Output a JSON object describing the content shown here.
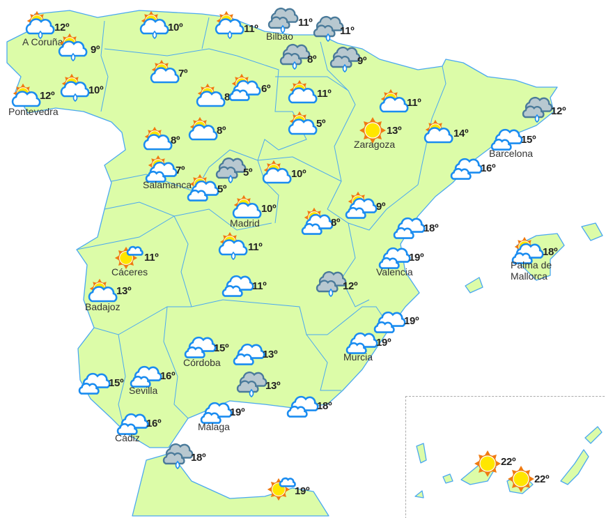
{
  "map": {
    "colors": {
      "land": "#dcfca8",
      "border": "#4aa8f0",
      "sun": "#ffe600",
      "sun_rays": "#f07a10",
      "cloud": "#ffffff",
      "cloud_outline": "#1a8cf0",
      "rain_cloud": "#b8c8d0",
      "rain_cloud_outline": "#4a7a9a"
    },
    "degree_symbol": "º"
  },
  "forecasts": [
    {
      "icon": "sun-cloud-rain",
      "temp": "12º",
      "city": "A Coruña"
    },
    {
      "icon": "sun-cloud-rain",
      "temp": "9º"
    },
    {
      "icon": "sun-cloud",
      "temp": "12º",
      "city": "Pontevedra"
    },
    {
      "icon": "sun-cloud-rain",
      "temp": "10º"
    },
    {
      "icon": "sun-cloud-rain",
      "temp": "10º"
    },
    {
      "icon": "sun-cloud-rain",
      "temp": "11º"
    },
    {
      "icon": "rain-cloud",
      "temp": "11º",
      "city": "Bilbao"
    },
    {
      "icon": "rain-cloud",
      "temp": "11º"
    },
    {
      "icon": "rain-cloud",
      "temp": "8º"
    },
    {
      "icon": "rain-cloud",
      "temp": "9º"
    },
    {
      "icon": "sun-cloud",
      "temp": "7º"
    },
    {
      "icon": "sun-cloud",
      "temp": "8º"
    },
    {
      "icon": "sun-clouds",
      "temp": "6º"
    },
    {
      "icon": "sun-cloud",
      "temp": "11º"
    },
    {
      "icon": "sun-cloud",
      "temp": "5º"
    },
    {
      "icon": "sun-cloud",
      "temp": "11º"
    },
    {
      "icon": "sun",
      "temp": "13º",
      "city": "Zaragoza"
    },
    {
      "icon": "sun-cloud",
      "temp": "14º"
    },
    {
      "icon": "rain-cloud",
      "temp": "12º"
    },
    {
      "icon": "clouds",
      "temp": "15º",
      "city": "Barcelona"
    },
    {
      "icon": "clouds",
      "temp": "16º"
    },
    {
      "icon": "sun-cloud",
      "temp": "8º"
    },
    {
      "icon": "sun-cloud",
      "temp": "8º"
    },
    {
      "icon": "sun-clouds",
      "temp": "7º",
      "city": "Salamanca"
    },
    {
      "icon": "sun-clouds",
      "temp": "5º"
    },
    {
      "icon": "rain-cloud",
      "temp": "5º"
    },
    {
      "icon": "sun-cloud",
      "temp": "10º"
    },
    {
      "icon": "sun-cloud",
      "temp": "10º",
      "city": "Madrid"
    },
    {
      "icon": "sun-clouds",
      "temp": "8º"
    },
    {
      "icon": "sun-clouds",
      "temp": "9º"
    },
    {
      "icon": "clouds",
      "temp": "18º"
    },
    {
      "icon": "sun-small-cloud",
      "temp": "11º",
      "city": "Cáceres"
    },
    {
      "icon": "sun-cloud",
      "temp": "13º",
      "city": "Badajoz"
    },
    {
      "icon": "sun-cloud-rain",
      "temp": "11º"
    },
    {
      "icon": "clouds",
      "temp": "11º"
    },
    {
      "icon": "rain-cloud",
      "temp": "12º"
    },
    {
      "icon": "clouds",
      "temp": "19º",
      "city": "Valencia"
    },
    {
      "icon": "sun-clouds",
      "temp": "18º",
      "city": "Palma de\nMallorca"
    },
    {
      "icon": "clouds",
      "temp": "19º"
    },
    {
      "icon": "clouds",
      "temp": "19º",
      "city": "Murcia"
    },
    {
      "icon": "clouds",
      "temp": "15º",
      "city": "Córdoba"
    },
    {
      "icon": "clouds",
      "temp": "13º"
    },
    {
      "icon": "rain-cloud",
      "temp": "13º"
    },
    {
      "icon": "clouds",
      "temp": "16º",
      "city": "Sevilla"
    },
    {
      "icon": "clouds",
      "temp": "15º"
    },
    {
      "icon": "clouds",
      "temp": "19º",
      "city": "Málaga"
    },
    {
      "icon": "clouds",
      "temp": "18º"
    },
    {
      "icon": "clouds",
      "temp": "16º",
      "city": "Cádiz"
    },
    {
      "icon": "rain-cloud",
      "temp": "18º"
    },
    {
      "icon": "sun-small-cloud",
      "temp": "19º"
    },
    {
      "icon": "sun",
      "temp": "22º"
    },
    {
      "icon": "sun",
      "temp": "22º"
    }
  ]
}
